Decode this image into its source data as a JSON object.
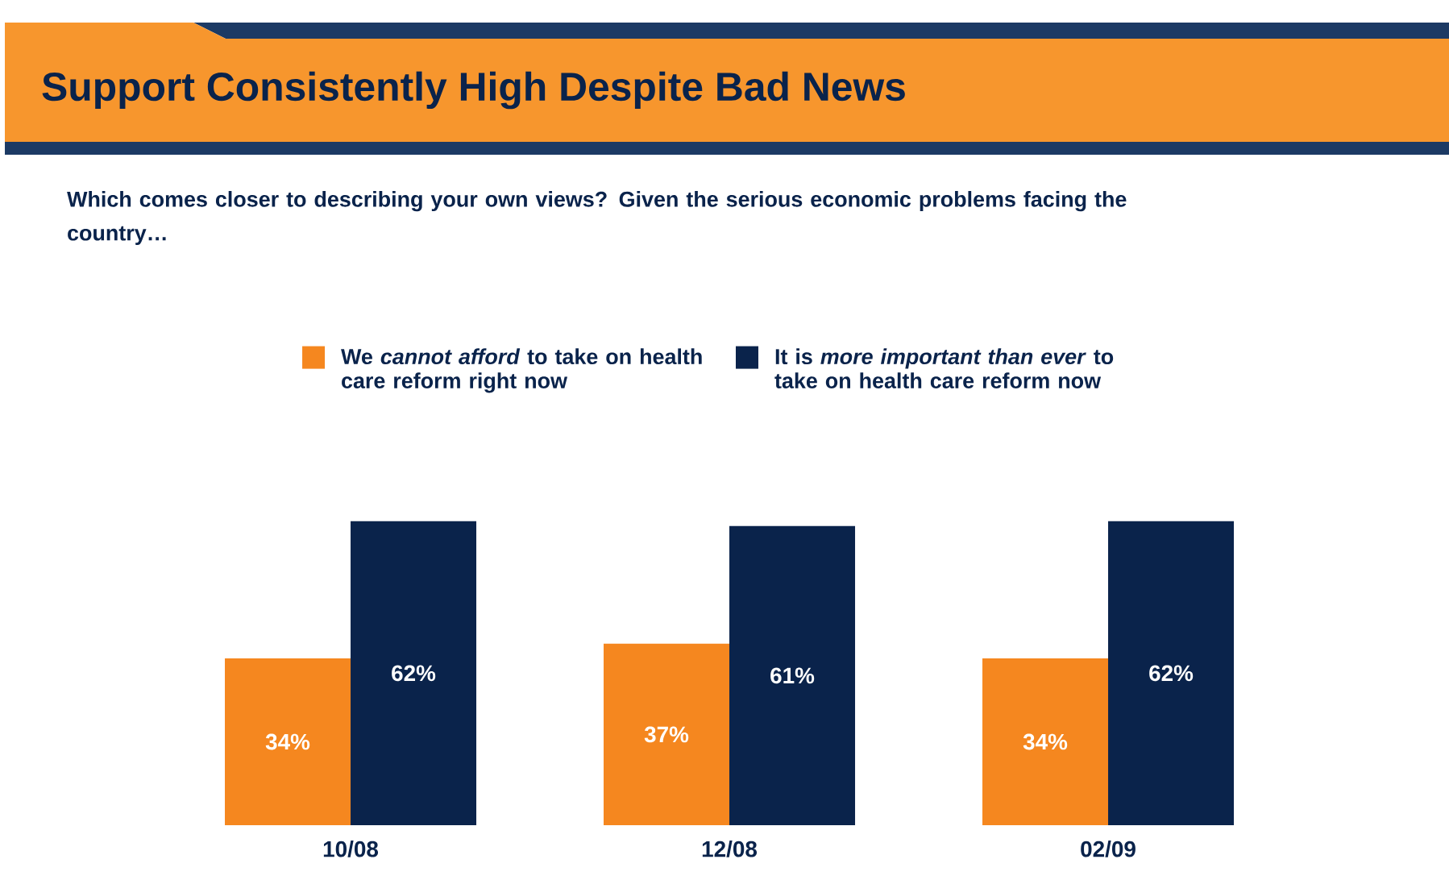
{
  "chart_data": {
    "type": "bar",
    "title": "Support Consistently High Despite Bad News",
    "subtitle": "Which comes closer to describing your own views? Given the serious economic problems facing the country…",
    "categories": [
      "10/08",
      "12/08",
      "02/09"
    ],
    "series": [
      {
        "name": "We *cannot afford* to take on health care reform right now",
        "color": "#f5871f",
        "values": [
          34,
          37,
          34
        ],
        "value_labels": [
          "34%",
          "37%",
          "34%"
        ]
      },
      {
        "name": "It is *more important than ever* to take on health care reform now",
        "color": "#0a234b",
        "values": [
          62,
          61,
          62
        ],
        "value_labels": [
          "62%",
          "61%",
          "62%"
        ]
      }
    ],
    "legend": "top"
  }
}
